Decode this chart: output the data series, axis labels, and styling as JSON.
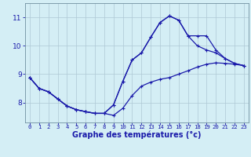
{
  "title": "Graphe des températures (°c)",
  "background_color": "#d4eef5",
  "grid_color": "#aec8d4",
  "line_color": "#1a1aaa",
  "hours": [
    0,
    1,
    2,
    3,
    4,
    5,
    6,
    7,
    8,
    9,
    10,
    11,
    12,
    13,
    14,
    15,
    16,
    17,
    18,
    19,
    20,
    21,
    22,
    23
  ],
  "temp_line1": [
    8.88,
    8.5,
    8.38,
    8.13,
    7.88,
    7.75,
    7.68,
    7.62,
    7.62,
    7.92,
    8.75,
    9.5,
    9.75,
    10.3,
    10.82,
    11.05,
    10.9,
    10.35,
    10.0,
    9.85,
    9.75,
    9.55,
    9.38,
    9.3
  ],
  "temp_line2": [
    8.88,
    8.5,
    8.38,
    8.13,
    7.88,
    7.75,
    7.68,
    7.62,
    7.62,
    7.55,
    7.8,
    8.25,
    8.58,
    8.72,
    8.82,
    8.88,
    9.0,
    9.12,
    9.25,
    9.35,
    9.4,
    9.38,
    9.35,
    9.3
  ],
  "temp_line3": [
    8.88,
    8.5,
    8.38,
    8.13,
    7.88,
    7.75,
    7.68,
    7.62,
    7.62,
    7.92,
    8.75,
    9.5,
    9.75,
    10.3,
    10.82,
    11.05,
    10.9,
    10.35,
    10.35,
    10.35,
    9.85,
    9.55,
    9.38,
    9.3
  ],
  "ylim": [
    7.3,
    11.5
  ],
  "yticks": [
    8,
    9,
    10,
    11
  ],
  "xlim": [
    -0.5,
    23.5
  ]
}
